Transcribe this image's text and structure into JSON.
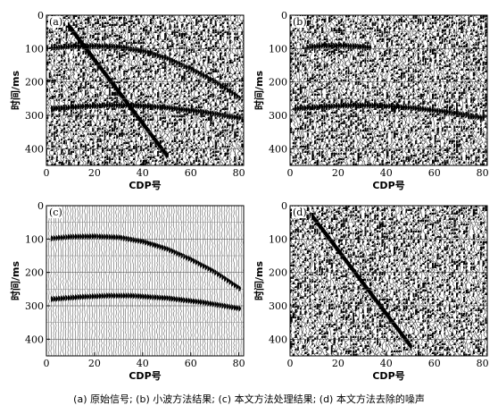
{
  "caption": "(a) 原始信号; (b) 小波方法结果; (c) 本文方法处理结果; (d) 本文方法去除的噪声",
  "chart_data": [
    {
      "type": "seismic-section",
      "panel_label": "(a)",
      "xlabel": "CDP号",
      "ylabel": "时间/ms",
      "xlim": [
        0,
        82
      ],
      "ylim": [
        450,
        0
      ],
      "xticks": [
        0,
        20,
        40,
        60,
        80
      ],
      "yticks": [
        0,
        100,
        200,
        300,
        400
      ],
      "noise": "heavy",
      "events": [
        {
          "kind": "curve",
          "points": [
            [
              2,
              98
            ],
            [
              10,
              93
            ],
            [
              20,
              92
            ],
            [
              30,
              95
            ],
            [
              40,
              108
            ],
            [
              50,
              130
            ],
            [
              60,
              162
            ],
            [
              70,
              200
            ],
            [
              80,
              248
            ]
          ]
        },
        {
          "kind": "curve",
          "points": [
            [
              2,
              280
            ],
            [
              15,
              273
            ],
            [
              25,
              270
            ],
            [
              35,
              270
            ],
            [
              50,
              277
            ],
            [
              65,
              290
            ],
            [
              80,
              308
            ]
          ]
        },
        {
          "kind": "linear",
          "points": [
            [
              9,
              30
            ],
            [
              50,
              420
            ]
          ]
        }
      ]
    },
    {
      "type": "seismic-section",
      "panel_label": "(b)",
      "xlabel": "CDP号",
      "ylabel": "时间/ms",
      "xlim": [
        0,
        82
      ],
      "ylim": [
        450,
        0
      ],
      "xticks": [
        0,
        20,
        40,
        60,
        80
      ],
      "yticks": [
        0,
        100,
        200,
        300,
        400
      ],
      "noise": "heavy",
      "events": [
        {
          "kind": "curve",
          "points": [
            [
              7,
              96
            ],
            [
              13,
              92
            ],
            [
              20,
              91
            ],
            [
              27,
              93
            ],
            [
              33,
              97
            ]
          ]
        },
        {
          "kind": "curve",
          "points": [
            [
              2,
              280
            ],
            [
              15,
              273
            ],
            [
              25,
              270
            ],
            [
              35,
              270
            ],
            [
              50,
              277
            ],
            [
              65,
              290
            ],
            [
              80,
              308
            ]
          ]
        }
      ]
    },
    {
      "type": "seismic-section",
      "panel_label": "(c)",
      "xlabel": "CDP号",
      "ylabel": "时间/ms",
      "xlim": [
        0,
        82
      ],
      "ylim": [
        450,
        0
      ],
      "xticks": [
        0,
        20,
        40,
        60,
        80
      ],
      "yticks": [
        0,
        100,
        200,
        300,
        400
      ],
      "noise": "light",
      "events": [
        {
          "kind": "curve",
          "points": [
            [
              2,
              98
            ],
            [
              10,
              93
            ],
            [
              20,
              92
            ],
            [
              30,
              95
            ],
            [
              40,
              108
            ],
            [
              50,
              130
            ],
            [
              60,
              162
            ],
            [
              70,
              200
            ],
            [
              80,
              248
            ]
          ]
        },
        {
          "kind": "curve",
          "points": [
            [
              2,
              280
            ],
            [
              15,
              273
            ],
            [
              25,
              270
            ],
            [
              35,
              270
            ],
            [
              50,
              277
            ],
            [
              65,
              290
            ],
            [
              80,
              308
            ]
          ]
        }
      ]
    },
    {
      "type": "seismic-section",
      "panel_label": "(d)",
      "xlabel": "CDP号",
      "ylabel": "时间/ms",
      "xlim": [
        0,
        82
      ],
      "ylim": [
        450,
        0
      ],
      "xticks": [
        0,
        20,
        40,
        60,
        80
      ],
      "yticks": [
        0,
        100,
        200,
        300,
        400
      ],
      "noise": "heavy",
      "events": [
        {
          "kind": "linear",
          "points": [
            [
              9,
              30
            ],
            [
              50,
              420
            ]
          ]
        }
      ]
    }
  ]
}
